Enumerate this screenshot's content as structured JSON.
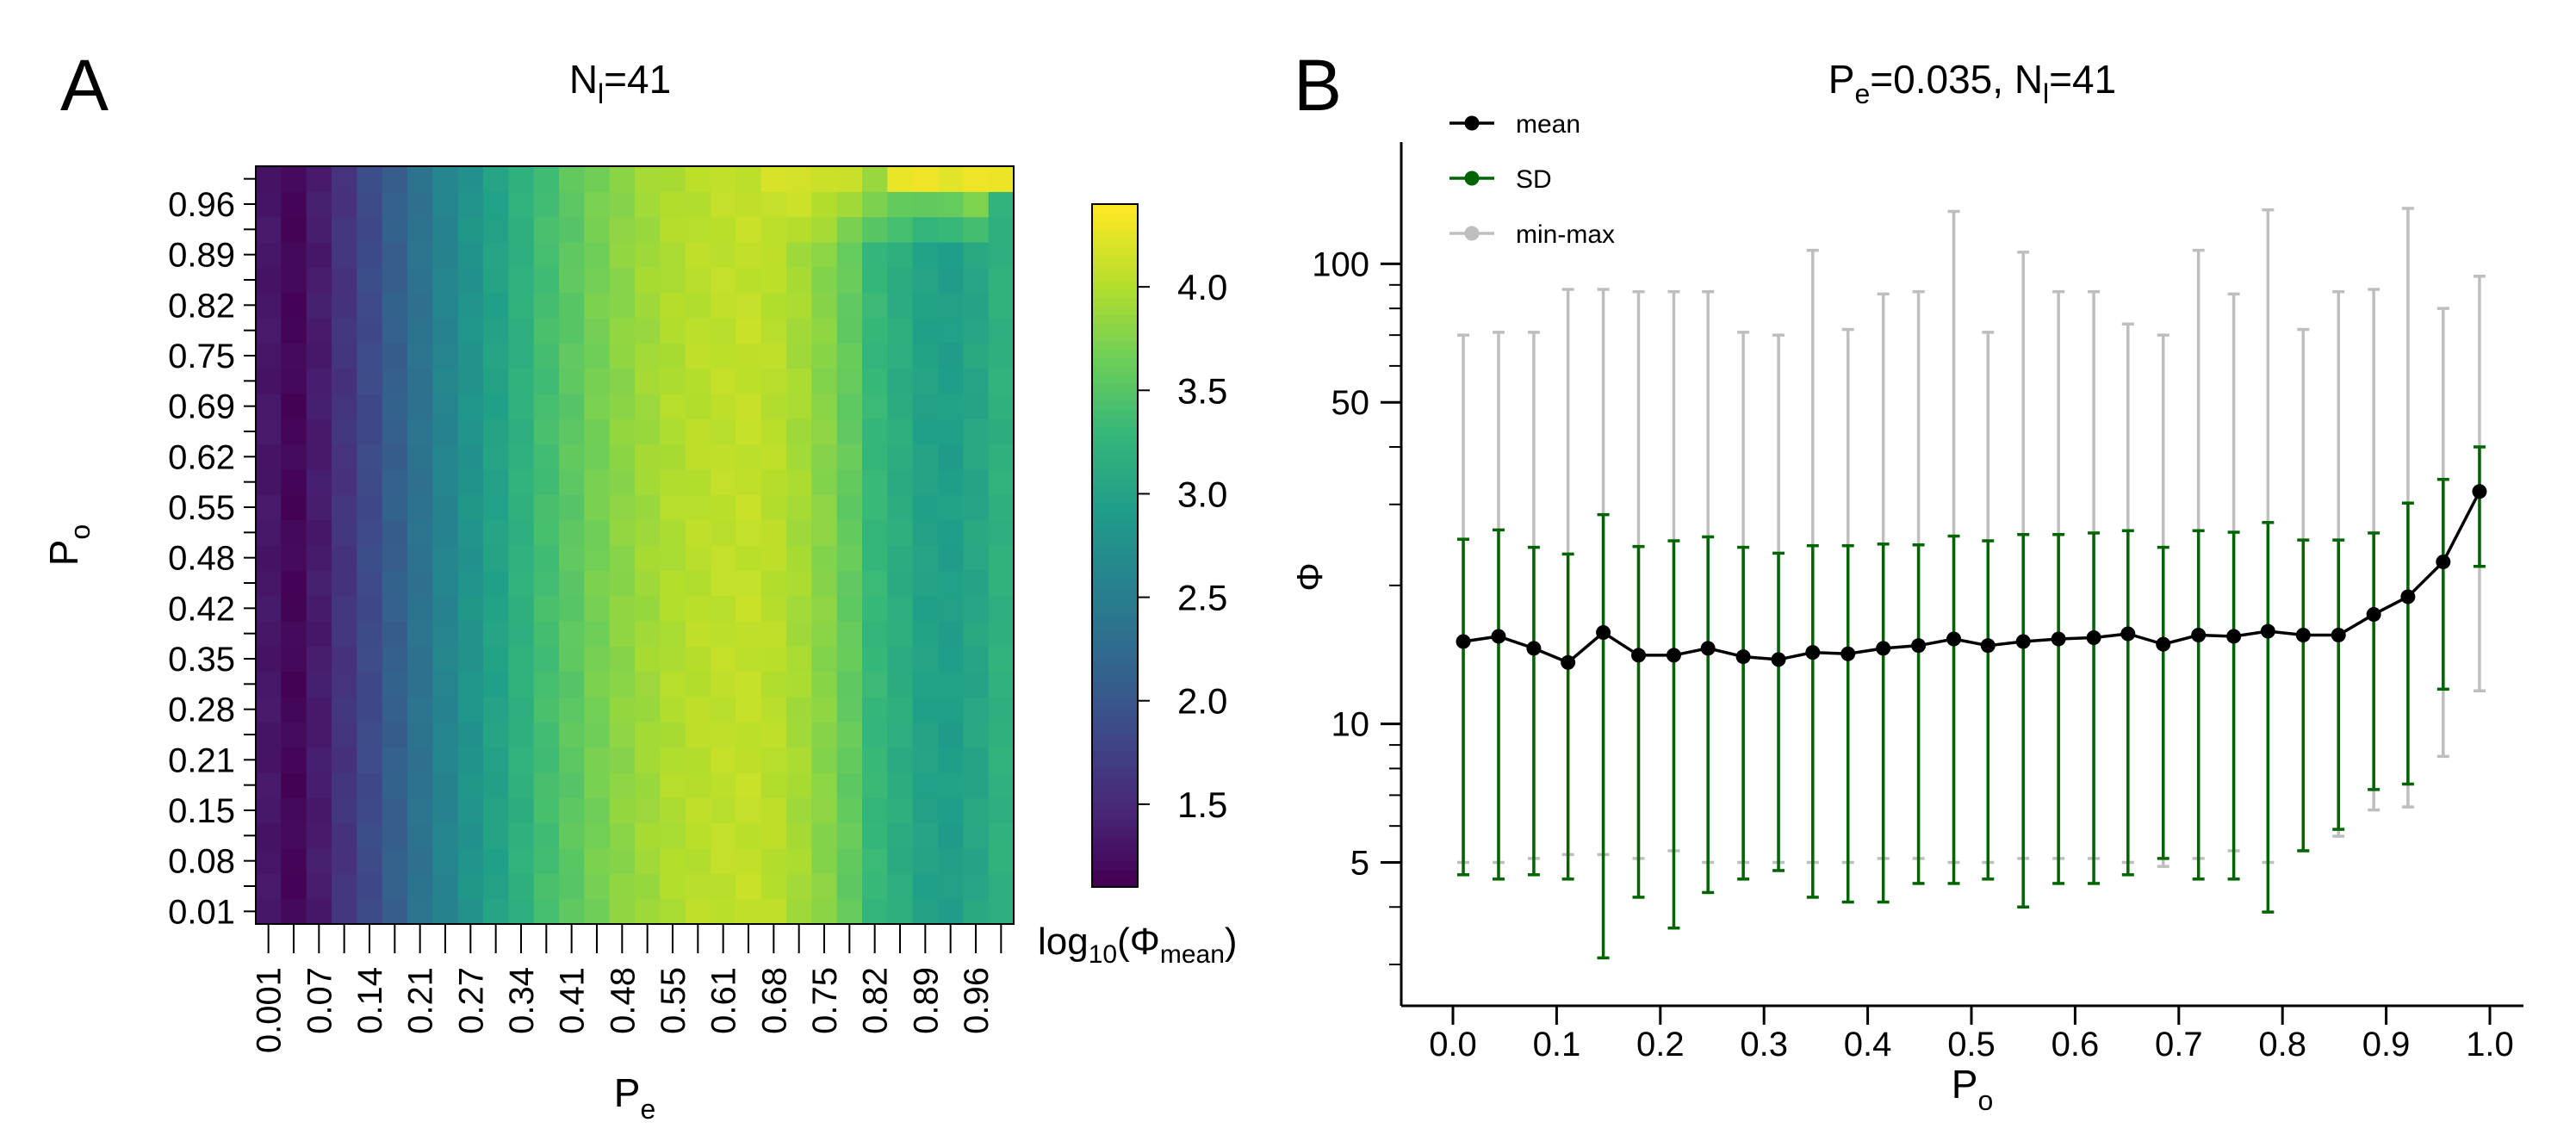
{
  "panel_a": {
    "label": "A",
    "title_main": "N",
    "title_sub": "l",
    "title_rest": "=41",
    "xlabel_main": "P",
    "xlabel_sub": "e",
    "ylabel_main": "P",
    "ylabel_sub": "o",
    "colorbar_label_pre": "log",
    "colorbar_label_base": "10",
    "colorbar_label_open": "(Φ",
    "colorbar_label_sub": "mean",
    "colorbar_label_close": ")"
  },
  "panel_b": {
    "label": "B",
    "title_p": "P",
    "title_p_sub": "e",
    "title_mid": "=0.035, N",
    "title_n_sub": "l",
    "title_rest": "=41",
    "xlabel_main": "P",
    "xlabel_sub": "o",
    "ylabel": "Φ"
  },
  "colors": {
    "mean": "#000000",
    "sd": "#006400",
    "minmax": "#bebebe",
    "viridis": [
      "#440154",
      "#482878",
      "#3e4989",
      "#31688e",
      "#26828e",
      "#1f9e89",
      "#35b779",
      "#6ece58",
      "#b5de2b",
      "#fde725"
    ]
  },
  "chart_data": [
    {
      "type": "heatmap",
      "title": "Nl=41",
      "xlabel": "Pe",
      "ylabel": "Po",
      "x_tick_labels": [
        "0.001",
        "0.07",
        "0.14",
        "0.21",
        "0.27",
        "0.34",
        "0.41",
        "0.48",
        "0.55",
        "0.61",
        "0.68",
        "0.75",
        "0.82",
        "0.89",
        "0.96"
      ],
      "y_tick_labels": [
        "0.01",
        "0.08",
        "0.15",
        "0.21",
        "0.28",
        "0.35",
        "0.42",
        "0.48",
        "0.55",
        "0.62",
        "0.69",
        "0.75",
        "0.82",
        "0.89",
        "0.96"
      ],
      "n_cols": 30,
      "n_rows": 30,
      "x_values": [
        0.001,
        0.035,
        0.07,
        0.1,
        0.14,
        0.17,
        0.21,
        0.24,
        0.27,
        0.31,
        0.34,
        0.38,
        0.41,
        0.45,
        0.48,
        0.52,
        0.55,
        0.58,
        0.61,
        0.65,
        0.68,
        0.72,
        0.75,
        0.79,
        0.82,
        0.86,
        0.89,
        0.93,
        0.96,
        0.99
      ],
      "column_profile": [
        1.3,
        1.15,
        1.35,
        1.6,
        1.85,
        2.1,
        2.35,
        2.6,
        2.8,
        3.0,
        3.2,
        3.4,
        3.55,
        3.7,
        3.82,
        3.92,
        4.0,
        4.05,
        4.08,
        4.1,
        4.05,
        3.95,
        3.8,
        3.6,
        3.3,
        3.15,
        3.0,
        2.95,
        3.05,
        3.2
      ],
      "top_rows_boost": 1.1,
      "colorbar": {
        "label": "log10(Φmean)",
        "range": [
          1.1,
          4.4
        ],
        "ticks": [
          1.5,
          2.0,
          2.5,
          3.0,
          3.5,
          4.0
        ],
        "tick_labels": [
          "1.5",
          "2.0",
          "2.5",
          "3.0",
          "3.5",
          "4.0"
        ]
      }
    },
    {
      "type": "line",
      "title": "Pe=0.035, Nl=41",
      "xlabel": "Po",
      "ylabel": "Φ",
      "y_scale": "log",
      "xlim": [
        0,
        1
      ],
      "x_ticks": [
        0.0,
        0.1,
        0.2,
        0.3,
        0.4,
        0.5,
        0.6,
        0.7,
        0.8,
        0.9,
        1.0
      ],
      "x_tick_labels": [
        "0.0",
        "0.1",
        "0.2",
        "0.3",
        "0.4",
        "0.5",
        "0.6",
        "0.7",
        "0.8",
        "0.9",
        "1.0"
      ],
      "y_ticks": [
        5,
        10,
        50,
        100
      ],
      "y_tick_labels": [
        "5",
        "10",
        "50",
        "100"
      ],
      "legend_position": "top-left",
      "x": [
        0.01,
        0.044,
        0.078,
        0.111,
        0.145,
        0.179,
        0.213,
        0.246,
        0.28,
        0.314,
        0.347,
        0.381,
        0.415,
        0.449,
        0.483,
        0.516,
        0.55,
        0.584,
        0.618,
        0.651,
        0.685,
        0.719,
        0.753,
        0.786,
        0.82,
        0.854,
        0.888,
        0.921,
        0.955,
        0.99
      ],
      "series": [
        {
          "name": "mean",
          "values": [
            15.1,
            15.5,
            14.6,
            13.6,
            15.8,
            14.1,
            14.1,
            14.6,
            14.0,
            13.8,
            14.3,
            14.2,
            14.6,
            14.8,
            15.3,
            14.8,
            15.1,
            15.3,
            15.4,
            15.7,
            14.9,
            15.6,
            15.5,
            15.9,
            15.6,
            15.6,
            17.3,
            18.9,
            22.5,
            32.0
          ]
        },
        {
          "name": "SD",
          "values_low": [
            4.7,
            4.6,
            4.7,
            4.6,
            3.1,
            4.2,
            3.6,
            4.3,
            4.6,
            4.8,
            4.2,
            4.1,
            4.1,
            4.5,
            4.5,
            4.6,
            4.0,
            4.5,
            4.5,
            4.7,
            5.1,
            4.6,
            4.6,
            3.9,
            5.3,
            5.9,
            7.2,
            7.4,
            11.9,
            22.0
          ],
          "values_high": [
            25.2,
            26.4,
            24.2,
            23.4,
            28.5,
            24.3,
            25.0,
            25.5,
            24.2,
            23.5,
            24.4,
            24.4,
            24.6,
            24.5,
            25.6,
            25.0,
            25.8,
            25.8,
            26.0,
            26.3,
            24.2,
            26.3,
            26.1,
            27.4,
            25.1,
            25.1,
            26.0,
            30.2,
            34.0,
            40.0
          ]
        },
        {
          "name": "min-max",
          "values_low": [
            5.0,
            5.0,
            5.1,
            5.2,
            5.2,
            5.1,
            5.3,
            5.0,
            5.0,
            5.0,
            5.0,
            5.0,
            5.1,
            5.1,
            5.0,
            5.0,
            5.1,
            5.1,
            5.1,
            5.0,
            4.9,
            5.1,
            5.3,
            5.0,
            5.3,
            5.7,
            6.5,
            6.6,
            8.5,
            11.8
          ],
          "values_high": [
            70,
            71,
            71,
            88,
            88,
            87,
            87,
            87,
            71,
            70,
            107,
            72,
            86,
            87,
            130,
            71,
            106,
            87,
            87,
            74,
            70,
            107,
            86,
            131,
            72,
            87,
            88,
            132,
            80,
            94
          ]
        }
      ]
    }
  ]
}
